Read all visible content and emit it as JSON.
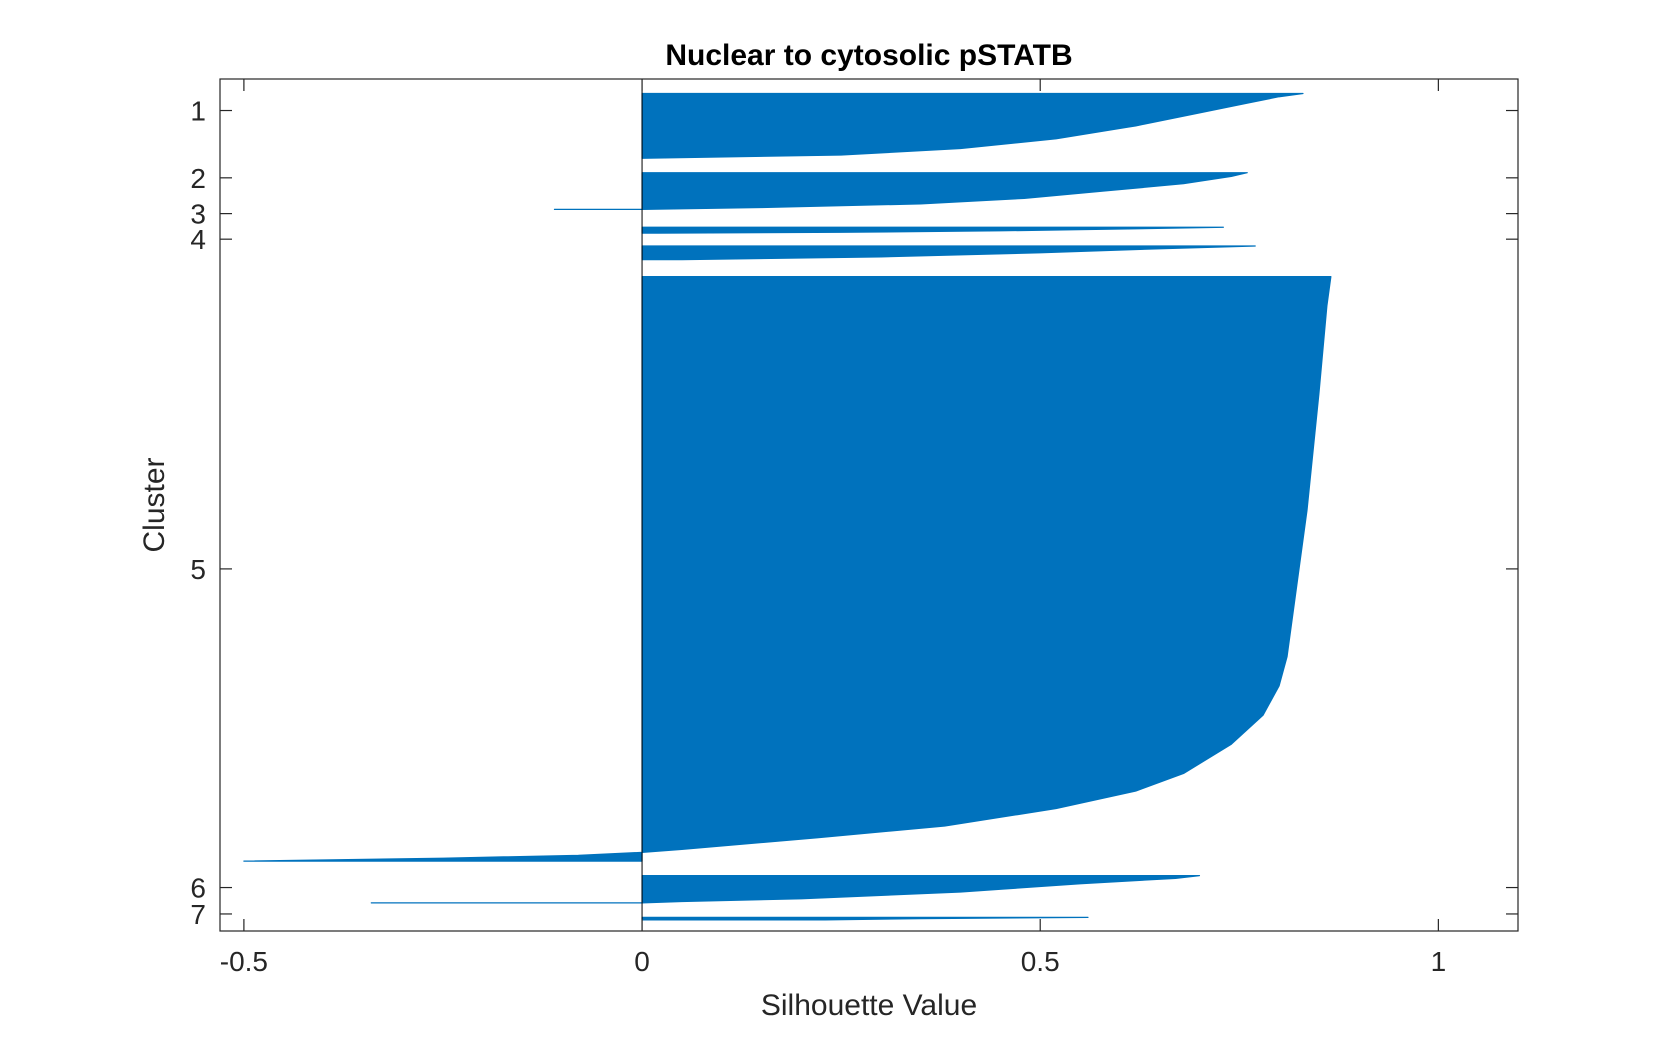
{
  "chart_data": {
    "type": "bar",
    "subtype": "silhouette",
    "orientation": "horizontal",
    "title": "Nuclear to cytosolic pSTATB",
    "xlabel": "Silhouette Value",
    "ylabel": "Cluster",
    "xlim": [
      -0.53,
      1.1
    ],
    "xticks": [
      -0.5,
      0,
      0.5,
      1
    ],
    "xtick_labels": [
      "-0.5",
      "0",
      "0.5",
      "1"
    ],
    "ylim_index": [
      0,
      1000
    ],
    "yticks": [
      {
        "label": "1",
        "index": 37
      },
      {
        "label": "2",
        "index": 116
      },
      {
        "label": "3",
        "index": 158
      },
      {
        "label": "4",
        "index": 188
      },
      {
        "label": "5",
        "index": 575
      },
      {
        "label": "6",
        "index": 949
      },
      {
        "label": "7",
        "index": 980
      }
    ],
    "color": "#0072BD",
    "grid": false,
    "clusters": [
      {
        "name": "1",
        "start": 17,
        "end": 93,
        "profile": [
          [
            0.0,
            0.83
          ],
          [
            0.05,
            0.8
          ],
          [
            0.15,
            0.76
          ],
          [
            0.3,
            0.7
          ],
          [
            0.5,
            0.62
          ],
          [
            0.7,
            0.52
          ],
          [
            0.85,
            0.4
          ],
          [
            0.95,
            0.25
          ],
          [
            1.0,
            0.0
          ]
        ]
      },
      {
        "name": "2",
        "start": 110,
        "end": 153,
        "profile": [
          [
            0.0,
            0.76
          ],
          [
            0.1,
            0.74
          ],
          [
            0.3,
            0.68
          ],
          [
            0.5,
            0.58
          ],
          [
            0.7,
            0.48
          ],
          [
            0.85,
            0.35
          ],
          [
            0.95,
            0.15
          ],
          [
            1.0,
            0.0
          ],
          [
            1.0,
            -0.11
          ]
        ]
      },
      {
        "name": "3",
        "start": 174,
        "end": 181,
        "profile": [
          [
            0.0,
            0.73
          ],
          [
            0.3,
            0.6
          ],
          [
            0.6,
            0.45
          ],
          [
            0.85,
            0.25
          ],
          [
            1.0,
            0.02
          ]
        ]
      },
      {
        "name": "4",
        "start": 196,
        "end": 212,
        "profile": [
          [
            0.0,
            0.77
          ],
          [
            0.2,
            0.65
          ],
          [
            0.5,
            0.5
          ],
          [
            0.8,
            0.3
          ],
          [
            1.0,
            0.05
          ]
        ]
      },
      {
        "name": "5",
        "start": 232,
        "end": 918,
        "profile": [
          [
            0.0,
            0.865
          ],
          [
            0.05,
            0.86
          ],
          [
            0.2,
            0.85
          ],
          [
            0.4,
            0.835
          ],
          [
            0.55,
            0.82
          ],
          [
            0.65,
            0.81
          ],
          [
            0.7,
            0.8
          ],
          [
            0.75,
            0.78
          ],
          [
            0.8,
            0.74
          ],
          [
            0.85,
            0.68
          ],
          [
            0.88,
            0.62
          ],
          [
            0.91,
            0.52
          ],
          [
            0.94,
            0.38
          ],
          [
            0.96,
            0.22
          ],
          [
            0.98,
            0.05
          ],
          [
            0.985,
            0.0
          ],
          [
            0.99,
            -0.08
          ],
          [
            0.995,
            -0.25
          ],
          [
            1.0,
            -0.5
          ]
        ]
      },
      {
        "name": "6",
        "start": 935,
        "end": 967,
        "profile": [
          [
            0.0,
            0.7
          ],
          [
            0.1,
            0.67
          ],
          [
            0.3,
            0.55
          ],
          [
            0.6,
            0.4
          ],
          [
            0.85,
            0.2
          ],
          [
            0.95,
            0.05
          ],
          [
            1.0,
            0.0
          ],
          [
            1.0,
            -0.34
          ]
        ]
      },
      {
        "name": "7",
        "start": 984,
        "end": 987,
        "profile": [
          [
            0.0,
            0.56
          ],
          [
            0.5,
            0.35
          ],
          [
            1.0,
            0.23
          ]
        ]
      }
    ]
  }
}
